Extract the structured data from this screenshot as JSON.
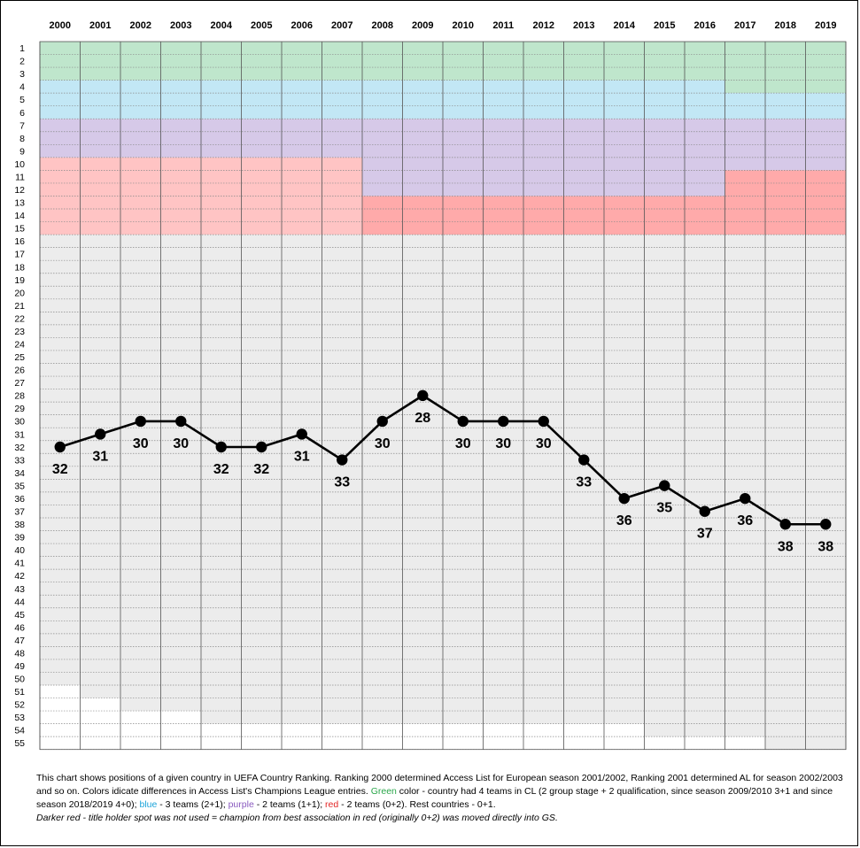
{
  "chart_data": {
    "type": "line",
    "title": "",
    "xlabel": "",
    "ylabel": "",
    "years": [
      "2000",
      "2001",
      "2002",
      "2003",
      "2004",
      "2005",
      "2006",
      "2007",
      "2008",
      "2009",
      "2010",
      "2011",
      "2012",
      "2013",
      "2014",
      "2015",
      "2016",
      "2017",
      "2018",
      "2019"
    ],
    "ranks": [
      "1",
      "2",
      "3",
      "4",
      "5",
      "6",
      "7",
      "8",
      "9",
      "10",
      "11",
      "12",
      "13",
      "14",
      "15",
      "16",
      "17",
      "18",
      "19",
      "20",
      "21",
      "22",
      "23",
      "24",
      "25",
      "26",
      "27",
      "28",
      "29",
      "30",
      "31",
      "32",
      "33",
      "34",
      "35",
      "36",
      "37",
      "38",
      "39",
      "40",
      "41",
      "42",
      "43",
      "44",
      "45",
      "46",
      "47",
      "48",
      "49",
      "50",
      "51",
      "52",
      "53",
      "54",
      "55"
    ],
    "ylim": [
      1,
      55
    ],
    "y_inverted": true,
    "series": [
      {
        "values": [
          32,
          31,
          30,
          30,
          32,
          32,
          31,
          33,
          30,
          28,
          30,
          30,
          30,
          33,
          36,
          35,
          37,
          36,
          38,
          38
        ],
        "labels": [
          "32",
          "31",
          "30",
          "30",
          "32",
          "32",
          "31",
          "33",
          "30",
          "28",
          "30",
          "30",
          "30",
          "33",
          "36",
          "35",
          "37",
          "36",
          "38",
          "38"
        ],
        "label_position": [
          "below",
          "below",
          "below",
          "below",
          "below",
          "below",
          "below",
          "below",
          "below",
          "below",
          "below",
          "below",
          "below",
          "below",
          "below",
          "below",
          "below",
          "below",
          "below",
          "below"
        ]
      }
    ],
    "zones": {
      "green": [
        3,
        3,
        3,
        3,
        3,
        3,
        3,
        3,
        3,
        3,
        3,
        3,
        3,
        3,
        3,
        3,
        3,
        4,
        4,
        4
      ],
      "blue": [
        3,
        3,
        3,
        3,
        3,
        3,
        3,
        3,
        3,
        3,
        3,
        3,
        3,
        3,
        3,
        3,
        3,
        2,
        2,
        2
      ],
      "purple": [
        3,
        3,
        3,
        3,
        3,
        3,
        3,
        3,
        6,
        6,
        6,
        6,
        6,
        6,
        6,
        6,
        6,
        4,
        4,
        4
      ],
      "red": [
        6,
        6,
        6,
        6,
        6,
        6,
        6,
        6,
        0,
        0,
        0,
        0,
        0,
        0,
        0,
        0,
        0,
        0,
        0,
        0
      ],
      "darkred": [
        0,
        0,
        0,
        0,
        0,
        0,
        0,
        0,
        3,
        3,
        3,
        3,
        3,
        3,
        3,
        3,
        3,
        5,
        5,
        5
      ],
      "member_count": [
        50,
        51,
        52,
        52,
        53,
        53,
        53,
        53,
        53,
        53,
        53,
        53,
        53,
        53,
        53,
        54,
        54,
        54,
        55,
        55
      ]
    },
    "grid": true
  },
  "colors": {
    "green": "#bfe6cc",
    "blue": "#c2e7f5",
    "purple": "#d6c9e8",
    "red": "#ffc4c4",
    "darkred": "#ffaaaa",
    "rest": "#ececec",
    "line": "#000000"
  },
  "caption": {
    "p1": "This chart shows positions of a given country in  UEFA Country Ranking. Ranking 2000 determined Access List for European season 2001/2002, Ranking 2001 determined AL for season 2002/2003 and so on.  Colors idicate differences in Access List's Champions League entries.  ",
    "green_word": "Green",
    "p2": " color - country had 4 teams in CL (2 group stage + 2 qualification, since season  2009/2010 3+1 and since season 2018/2019  4+0); ",
    "blue_word": "blue",
    "p3": " - 3 teams  (2+1); ",
    "purple_word": "purple",
    "p4": " - 2 teams (1+1); ",
    "red_word": "red",
    "p5": " - 2 teams  (0+2). Rest countries - 0+1.",
    "note": "Darker red - title holder spot was not used = champion from best association in red (originally 0+2) was moved directly  into GS."
  }
}
